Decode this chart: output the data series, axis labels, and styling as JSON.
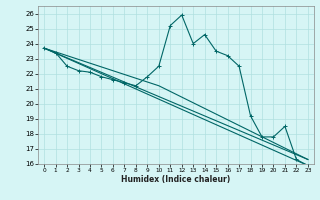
{
  "xlabel": "Humidex (Indice chaleur)",
  "bg_color": "#d6f5f5",
  "grid_color": "#b0e0e0",
  "line_color": "#006666",
  "xlim": [
    -0.5,
    23.5
  ],
  "ylim": [
    16,
    26.5
  ],
  "x_ticks": [
    0,
    1,
    2,
    3,
    4,
    5,
    6,
    7,
    8,
    9,
    10,
    11,
    12,
    13,
    14,
    15,
    16,
    17,
    18,
    19,
    20,
    21,
    22,
    23
  ],
  "y_ticks": [
    16,
    17,
    18,
    19,
    20,
    21,
    22,
    23,
    24,
    25,
    26
  ],
  "series1": {
    "x": [
      0,
      1,
      2,
      3,
      4,
      5,
      6,
      7,
      8,
      9,
      10,
      11,
      12,
      13,
      14,
      15,
      16,
      17,
      18,
      19,
      20,
      21,
      22,
      23
    ],
    "y": [
      23.7,
      23.4,
      22.5,
      22.2,
      22.1,
      21.8,
      21.6,
      21.4,
      21.2,
      21.8,
      22.5,
      25.2,
      25.9,
      24.0,
      24.6,
      23.5,
      23.2,
      22.5,
      19.2,
      17.8,
      17.8,
      18.5,
      16.3,
      15.9
    ]
  },
  "series2": {
    "x": [
      0,
      23
    ],
    "y": [
      23.7,
      15.9
    ]
  },
  "series3": {
    "x": [
      0,
      23
    ],
    "y": [
      23.7,
      16.3
    ]
  },
  "series4": {
    "x": [
      0,
      10,
      23
    ],
    "y": [
      23.7,
      21.2,
      16.3
    ]
  }
}
